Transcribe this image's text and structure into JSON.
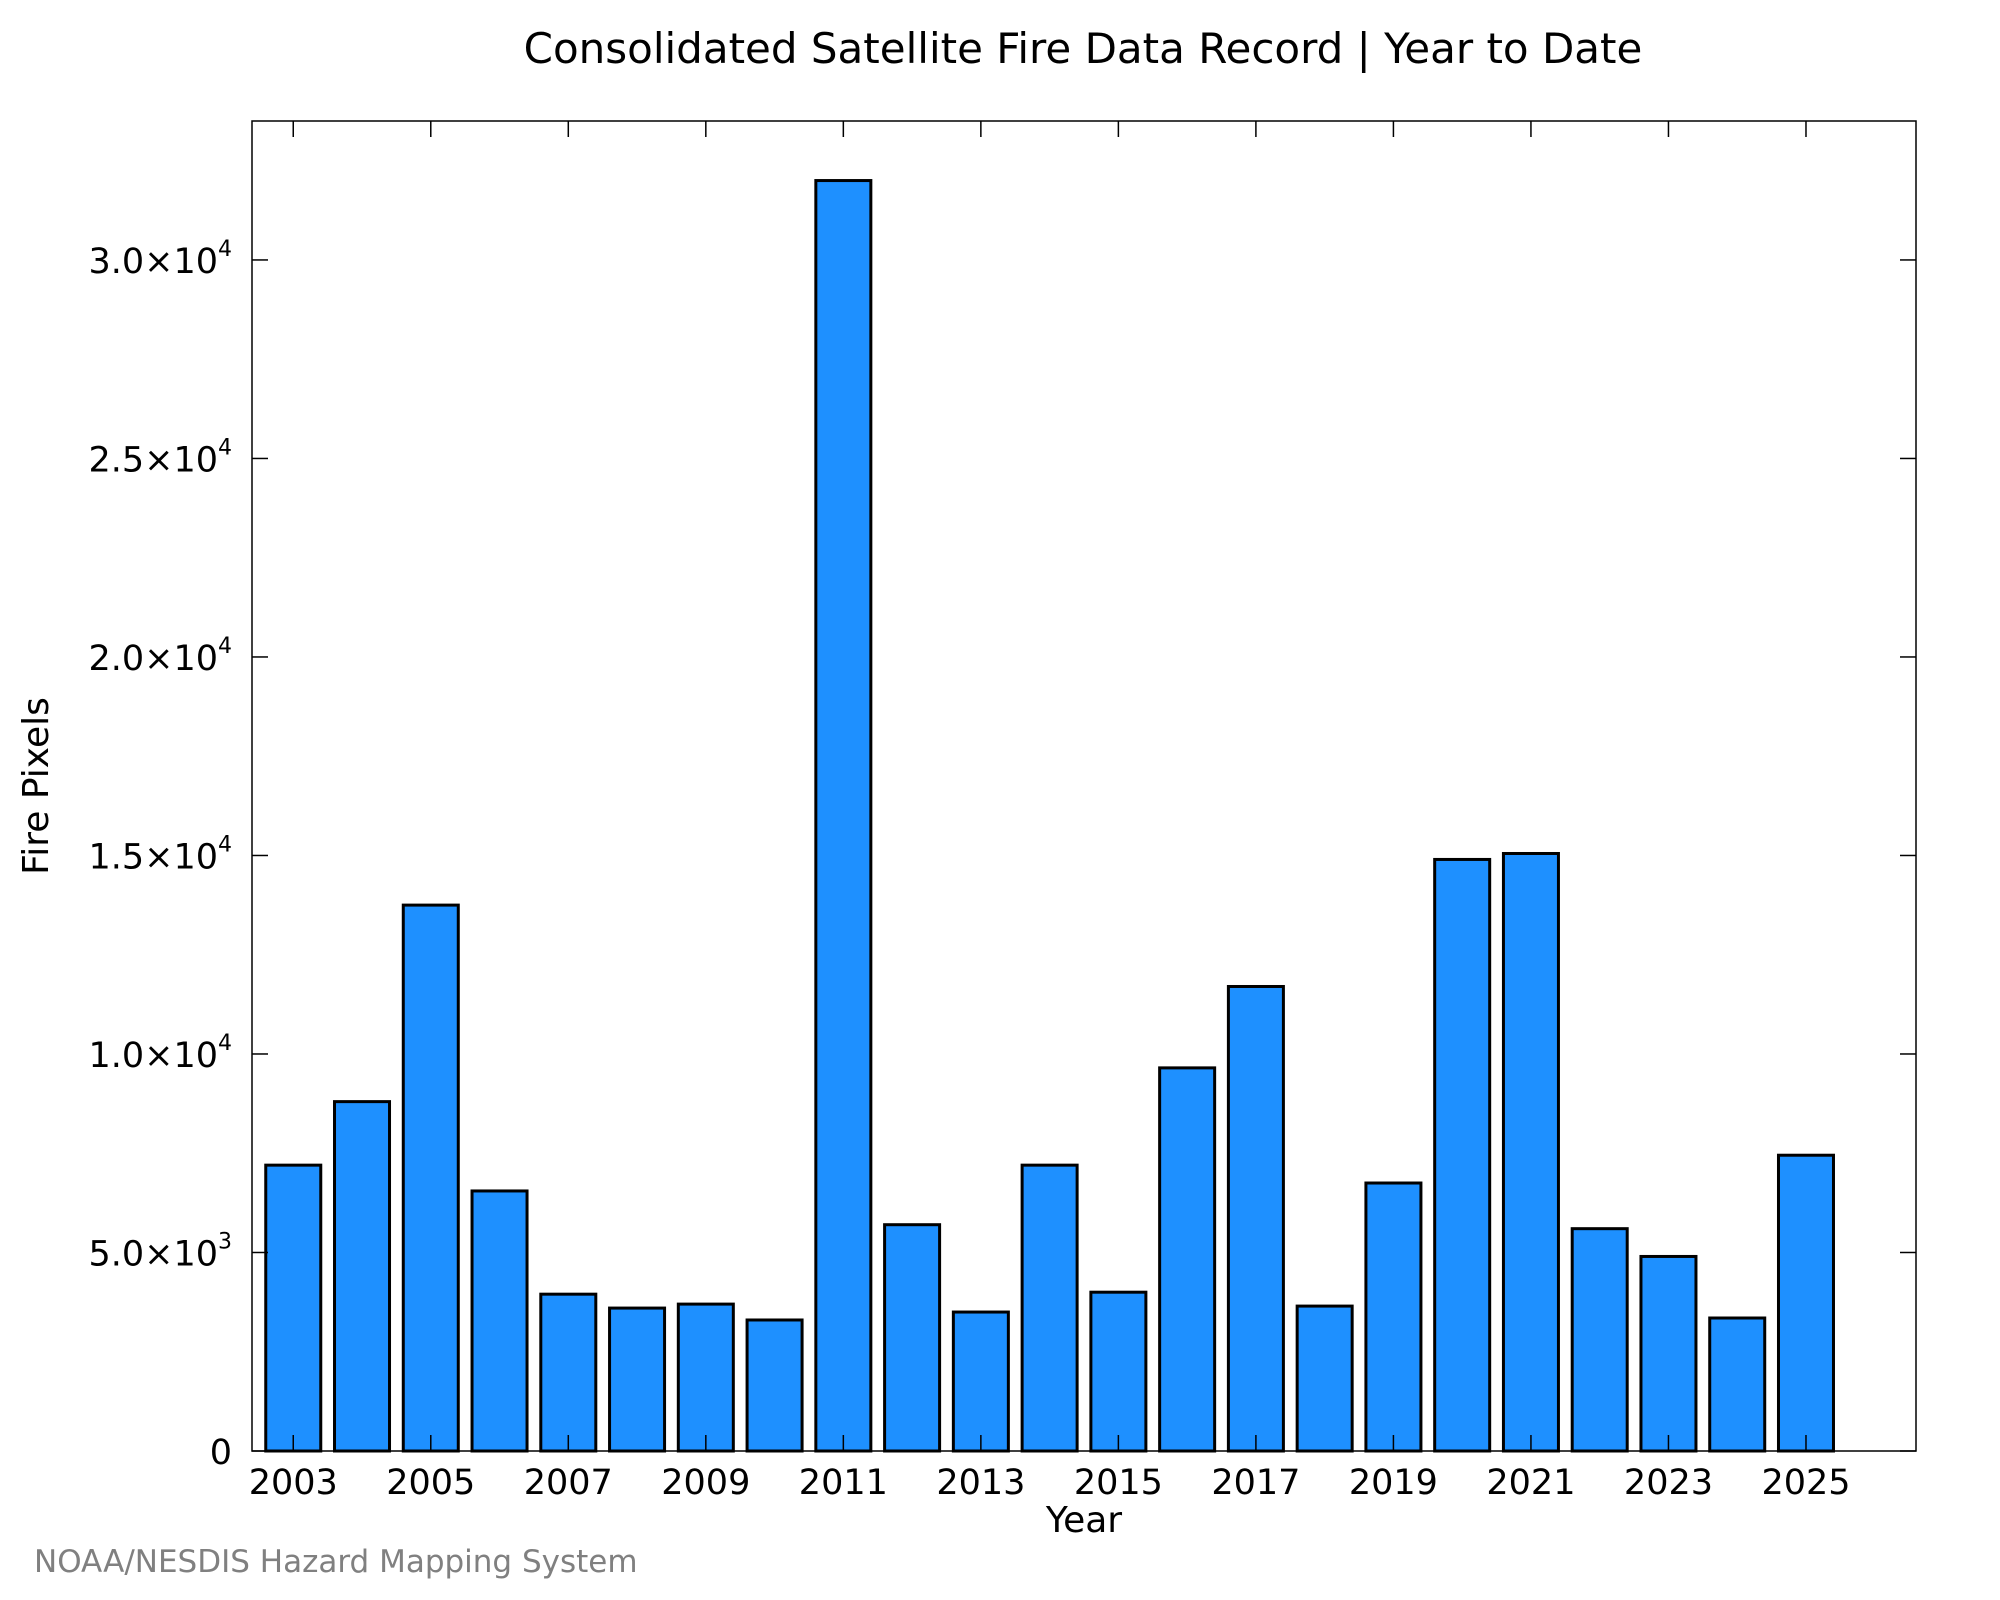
{
  "chart_data": {
    "type": "bar",
    "title": "Consolidated Satellite Fire Data Record | Year to Date",
    "xlabel": "Year",
    "ylabel": "Fire Pixels",
    "credit": "NOAA/NESDIS Hazard Mapping System",
    "categories": [
      "2003",
      "2004",
      "2005",
      "2006",
      "2007",
      "2008",
      "2009",
      "2010",
      "2011",
      "2012",
      "2013",
      "2014",
      "2015",
      "2016",
      "2017",
      "2018",
      "2019",
      "2020",
      "2021",
      "2022",
      "2023",
      "2024",
      "2025"
    ],
    "values": [
      7200,
      8800,
      13750,
      6550,
      3950,
      3600,
      3700,
      3300,
      32000,
      5700,
      3500,
      7200,
      4000,
      9650,
      11700,
      3650,
      6750,
      14900,
      15050,
      5600,
      4900,
      3350,
      7450
    ],
    "x_tick_labels": [
      "2003",
      "2005",
      "2007",
      "2009",
      "2011",
      "2013",
      "2015",
      "2017",
      "2019",
      "2021",
      "2023",
      "2025"
    ],
    "y_ticks": [
      {
        "value": 0,
        "mantissa": "0",
        "exponent": ""
      },
      {
        "value": 5000,
        "mantissa": "5.0×10",
        "exponent": "3"
      },
      {
        "value": 10000,
        "mantissa": "1.0×10",
        "exponent": "4"
      },
      {
        "value": 15000,
        "mantissa": "1.5×10",
        "exponent": "4"
      },
      {
        "value": 20000,
        "mantissa": "2.0×10",
        "exponent": "4"
      },
      {
        "value": 25000,
        "mantissa": "2.5×10",
        "exponent": "4"
      },
      {
        "value": 30000,
        "mantissa": "3.0×10",
        "exponent": "4"
      }
    ],
    "ylim": [
      0,
      33500
    ],
    "xlim": [
      2002.4,
      2026.6
    ],
    "grid": false,
    "bar_color": "#1e90ff",
    "edge_color": "#000000"
  }
}
